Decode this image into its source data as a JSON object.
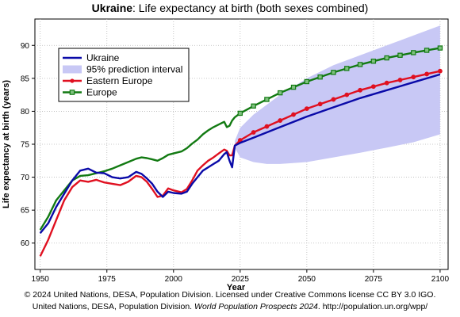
{
  "title": {
    "country": "Ukraine",
    "rest": ": Life expectancy at birth (both sexes combined)"
  },
  "credits": {
    "line1": "© 2024 United Nations, DESA, Population Division. Licensed under Creative Commons license CC BY 3.0 IGO.",
    "line2_a": "United Nations, DESA, Population Division. ",
    "line2_b": "World Population Prospects 2024",
    "line2_c": ". http://population.un.org/wpp/"
  },
  "colors": {
    "ukraine": "#0a0aa8",
    "interval": "#c8c8f5",
    "eastern_europe": "#e01020",
    "europe": "#127a12",
    "grid": "#b8b8b8"
  },
  "chart_data": {
    "type": "line",
    "title": "Ukraine: Life expectancy at birth (both sexes combined)",
    "xlabel": "Year",
    "ylabel": "Life expectancy at birth (years)",
    "xlim": [
      1948,
      2103
    ],
    "ylim": [
      56,
      94
    ],
    "xticks": [
      1950,
      1975,
      2000,
      2025,
      2050,
      2075,
      2100
    ],
    "yticks": [
      60,
      65,
      70,
      75,
      80,
      85,
      90
    ],
    "grid": true,
    "legend_position": "top-left",
    "legend": [
      "Ukraine",
      "95% prediction interval",
      "Eastern Europe",
      "Europe"
    ],
    "series": [
      {
        "name": "Ukraine",
        "x": [
          1950,
          1953,
          1956,
          1959,
          1962,
          1965,
          1968,
          1971,
          1974,
          1977,
          1980,
          1983,
          1986,
          1988,
          1990,
          1992,
          1994,
          1996,
          1998,
          2000,
          2003,
          2005,
          2007,
          2009,
          2011,
          2013,
          2015,
          2017,
          2019,
          2020,
          2021,
          2022,
          2023,
          2025,
          2030,
          2040,
          2050,
          2060,
          2070,
          2080,
          2090,
          2100
        ],
        "values": [
          61.5,
          63.0,
          65.5,
          67.5,
          69.5,
          71.0,
          71.3,
          70.7,
          70.6,
          70.0,
          69.8,
          70.0,
          70.8,
          70.5,
          69.8,
          69.0,
          67.8,
          67.0,
          67.8,
          67.6,
          67.5,
          67.8,
          69.0,
          70.0,
          71.0,
          71.5,
          72.0,
          72.5,
          73.5,
          73.8,
          72.5,
          71.5,
          74.8,
          75.2,
          76.0,
          77.6,
          79.2,
          80.6,
          82.0,
          83.2,
          84.4,
          85.6
        ]
      },
      {
        "name": "Eastern Europe",
        "x": [
          1950,
          1953,
          1956,
          1959,
          1962,
          1965,
          1968,
          1971,
          1974,
          1977,
          1980,
          1983,
          1986,
          1988,
          1990,
          1992,
          1994,
          1996,
          1998,
          2000,
          2003,
          2005,
          2007,
          2009,
          2011,
          2013,
          2015,
          2017,
          2019,
          2020,
          2021,
          2022,
          2023,
          2025,
          2030,
          2040,
          2050,
          2060,
          2070,
          2080,
          2090,
          2100
        ],
        "values": [
          58.0,
          60.5,
          63.5,
          66.5,
          68.5,
          69.5,
          69.3,
          69.6,
          69.2,
          69.0,
          68.8,
          69.3,
          70.2,
          70.0,
          69.3,
          68.2,
          67.0,
          67.2,
          68.3,
          68.0,
          67.7,
          68.2,
          69.5,
          71.0,
          71.8,
          72.5,
          73.0,
          73.6,
          74.2,
          74.0,
          73.3,
          73.3,
          74.8,
          75.6,
          76.8,
          78.6,
          80.4,
          81.8,
          83.2,
          84.3,
          85.2,
          86.1
        ]
      },
      {
        "name": "Europe",
        "x": [
          1950,
          1953,
          1956,
          1959,
          1962,
          1965,
          1968,
          1971,
          1974,
          1977,
          1980,
          1983,
          1986,
          1988,
          1990,
          1992,
          1994,
          1996,
          1998,
          2000,
          2003,
          2005,
          2007,
          2009,
          2011,
          2013,
          2015,
          2017,
          2019,
          2020,
          2021,
          2022,
          2023,
          2025,
          2030,
          2040,
          2050,
          2060,
          2070,
          2080,
          2090,
          2100
        ],
        "values": [
          62.0,
          64.0,
          66.5,
          68.0,
          69.5,
          70.2,
          70.3,
          70.6,
          70.9,
          71.3,
          71.8,
          72.3,
          72.8,
          73.0,
          72.9,
          72.7,
          72.5,
          72.9,
          73.4,
          73.6,
          73.9,
          74.4,
          75.1,
          75.7,
          76.5,
          77.1,
          77.6,
          78.0,
          78.4,
          77.6,
          77.8,
          78.6,
          79.1,
          79.7,
          80.8,
          82.8,
          84.5,
          85.9,
          87.1,
          88.1,
          88.9,
          89.6
        ]
      }
    ],
    "interval": {
      "name": "95% prediction interval",
      "x": [
        2023,
        2025,
        2030,
        2035,
        2040,
        2050,
        2060,
        2070,
        2080,
        2090,
        2100
      ],
      "lower": [
        74.5,
        73.0,
        72.3,
        72.0,
        72.0,
        72.3,
        73.0,
        73.7,
        74.5,
        75.3,
        76.5
      ],
      "upper": [
        75.5,
        77.5,
        79.5,
        81.0,
        82.5,
        85.0,
        87.0,
        88.5,
        90.0,
        91.5,
        93.0
      ]
    }
  }
}
